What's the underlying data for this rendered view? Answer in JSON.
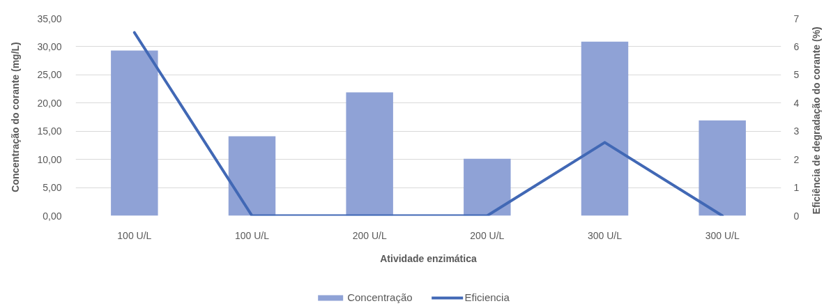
{
  "chart_data": {
    "type": "bar",
    "categories": [
      "100 U/L",
      "100 U/L",
      "200 U/L",
      "200 U/L",
      "300 U/L",
      "300 U/L"
    ],
    "xlabel": "Atividade enzimática",
    "ylabel": "Concentração do corante (mg/L)",
    "y2label": "Eficiência de degradação do corante (%)",
    "series": [
      {
        "name": "Concentração",
        "color": "#8fa2d6",
        "values": [
          29.3,
          14.1,
          21.9,
          10.1,
          30.9,
          16.9
        ]
      },
      {
        "name": "Eficiencia",
        "type": "line",
        "axis": "y2",
        "color": "#4168b5",
        "values": [
          6.5,
          0,
          0,
          0,
          2.6,
          0
        ]
      }
    ],
    "ylim": [
      0,
      35
    ],
    "yticks": [
      {
        "value": 0,
        "label": "0,00"
      },
      {
        "value": 5,
        "label": "5,00"
      },
      {
        "value": 10,
        "label": "10,00"
      },
      {
        "value": 15,
        "label": "15,00"
      },
      {
        "value": 20,
        "label": "20,00"
      },
      {
        "value": 25,
        "label": "25,00"
      },
      {
        "value": 30,
        "label": "30,00"
      },
      {
        "value": 35,
        "label": "35,00"
      }
    ],
    "y2lim": [
      0,
      7
    ],
    "y2ticks": [
      0,
      1,
      2,
      3,
      4,
      5,
      6,
      7
    ],
    "grid": "y",
    "legend": "bottom"
  }
}
